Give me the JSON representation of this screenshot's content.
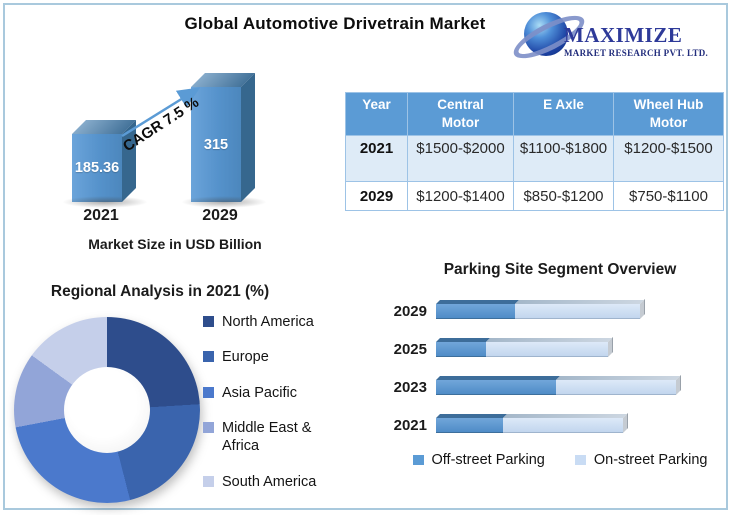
{
  "header": {
    "title": "Global Automotive Drivetrain Market",
    "logo": {
      "wordmark": "MAXIMIZE",
      "subtitle": "MARKET RESEARCH PVT. LTD.",
      "brand_color": "#2e3a99"
    }
  },
  "price_table": {
    "headers": [
      "Year",
      "Central Motor",
      "E Axle",
      "Wheel Hub Motor"
    ],
    "rows": [
      [
        "2021",
        "$1500-$2000",
        "$1100-$1800",
        "$1200-$1500"
      ],
      [
        "2029",
        "$1200-$1400",
        "$850-$1200",
        "$750-$1100"
      ]
    ],
    "header_bg": "#5b9bd5",
    "row_alt_bg": "#deebf7",
    "border_color": "#9dc3e6"
  },
  "chart_data": [
    {
      "type": "bar",
      "title": "Market Size in USD Billion",
      "categories": [
        "2021",
        "2029"
      ],
      "values": [
        185.36,
        315
      ],
      "value_labels": [
        "185.36",
        "315"
      ],
      "annotation": "CAGR 7.5 %",
      "ylim": [
        0,
        315
      ],
      "bar_color": "#5592cb",
      "arrow_color": "#5b9bd5"
    },
    {
      "type": "pie",
      "subtype": "donut",
      "title": "Regional Analysis in 2021 (%)",
      "labels": [
        "North America",
        "Europe",
        "Asia Pacific",
        "Middle East & Africa",
        "South America"
      ],
      "values": [
        24,
        22,
        26,
        13,
        15
      ],
      "colors": [
        "#2e4d8c",
        "#3a64ad",
        "#4b79cc",
        "#92a5d8",
        "#c5cfea"
      ],
      "legend_position": "right"
    },
    {
      "type": "bar",
      "orientation": "horizontal",
      "stacked": true,
      "title": "Parking Site Segment Overview",
      "categories": [
        "2029",
        "2025",
        "2023",
        "2021"
      ],
      "series": [
        {
          "name": "Off-street Parking",
          "color": "#5b9bd5",
          "values": [
            33,
            21,
            50,
            28
          ]
        },
        {
          "name": "On-street Parking",
          "color": "#c9dcf4",
          "values": [
            52,
            51,
            50,
            50
          ]
        }
      ],
      "xlim": [
        0,
        110
      ],
      "axis_visible": false,
      "legend_position": "bottom"
    }
  ]
}
